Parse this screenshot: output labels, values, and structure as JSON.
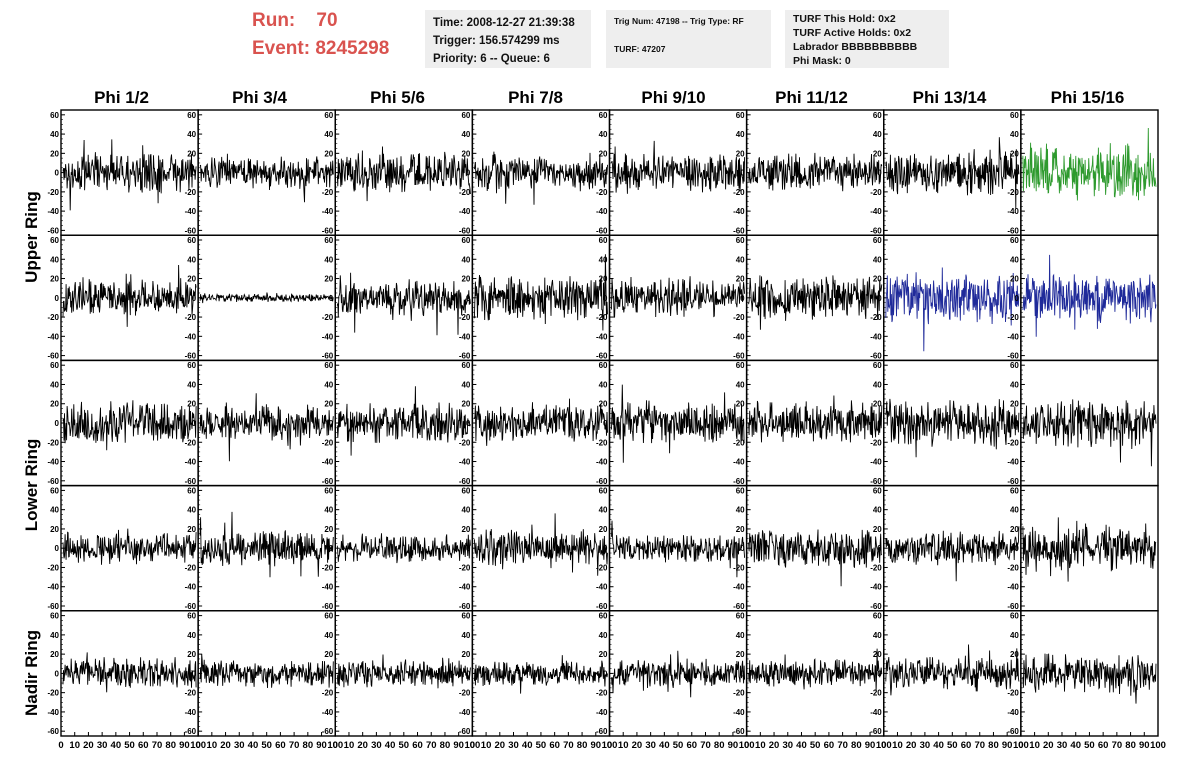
{
  "header": {
    "run_label": "Run:    70",
    "event_label": "Event: 8245298"
  },
  "info_time": {
    "time": "Time: 2008-12-27 21:39:38",
    "trigger": "Trigger: 156.574299 ms",
    "priority": "Priority: 6 -- Queue: 6"
  },
  "info_trig": {
    "trig_num": "Trig Num: 47198 -- Trig Type: RF",
    "turf": "TURF: 47207"
  },
  "info_turf": {
    "this_hold": "TURF This Hold: 0x2",
    "active_holds": "TURF Active Holds: 0x2",
    "labrador": "Labrador BBBBBBBBBB",
    "phi_mask": "Phi Mask: 0"
  },
  "columns": [
    "Phi 1/2",
    "Phi 3/4",
    "Phi 5/6",
    "Phi 7/8",
    "Phi 9/10",
    "Phi 11/12",
    "Phi 13/14",
    "Phi 15/16"
  ],
  "rings": [
    "Upper Ring",
    "Lower Ring",
    "Nadir Ring"
  ],
  "colors": {
    "trace_default": "#000000",
    "trace_green": "#2e9a2e",
    "trace_blue": "#1f2a9a",
    "header_red": "#d9534f",
    "info_bg": "#eeeeee"
  },
  "chart_data": {
    "type": "line",
    "description_of_layout": "",
    "y_ticks": [
      "60",
      "40",
      "20",
      "0",
      "-20",
      "-40",
      "-60"
    ],
    "x_ticks": [
      "0",
      "10",
      "20",
      "30",
      "40",
      "50",
      "60",
      "70",
      "80",
      "90",
      "100"
    ],
    "ylim": [
      -65,
      65
    ],
    "xlim": [
      0,
      100
    ],
    "panel_rows": 5,
    "panel_cols": 8,
    "highlighted_panels": [
      {
        "row": 0,
        "col": 7,
        "color": "green"
      },
      {
        "row": 1,
        "col": 6,
        "color": "blue"
      },
      {
        "row": 1,
        "col": 7,
        "color": "blue"
      }
    ],
    "amplitudes": [
      [
        14,
        12,
        14,
        14,
        14,
        13,
        16,
        20
      ],
      [
        13,
        3,
        14,
        16,
        14,
        16,
        18,
        18
      ],
      [
        15,
        13,
        15,
        14,
        15,
        15,
        18,
        17
      ],
      [
        11,
        13,
        10,
        13,
        10,
        14,
        12,
        17
      ],
      [
        11,
        10,
        10,
        9,
        10,
        10,
        12,
        15
      ]
    ]
  }
}
